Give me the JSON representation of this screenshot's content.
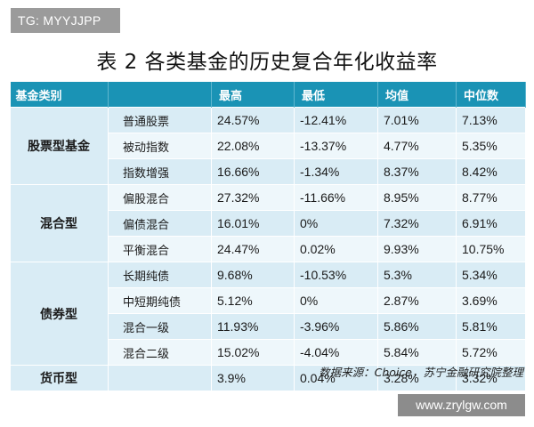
{
  "watermark_top": "TG: MYYJJPP",
  "title": "表 2  各类基金的历史复合年化收益率",
  "table": {
    "headers": [
      "基金类别",
      "",
      "最高",
      "最低",
      "均值",
      "中位数"
    ],
    "groups": [
      {
        "name": "股票型基金",
        "rows": [
          {
            "sub": "普通股票",
            "max": "24.57%",
            "min": "-12.41%",
            "mean": "7.01%",
            "median": "7.13%"
          },
          {
            "sub": "被动指数",
            "max": "22.08%",
            "min": "-13.37%",
            "mean": "4.77%",
            "median": "5.35%"
          },
          {
            "sub": "指数增强",
            "max": "16.66%",
            "min": "-1.34%",
            "mean": "8.37%",
            "median": "8.42%"
          }
        ]
      },
      {
        "name": "混合型",
        "rows": [
          {
            "sub": "偏股混合",
            "max": "27.32%",
            "min": "-11.66%",
            "mean": "8.95%",
            "median": "8.77%"
          },
          {
            "sub": "偏债混合",
            "max": "16.01%",
            "min": "0%",
            "mean": "7.32%",
            "median": "6.91%"
          },
          {
            "sub": "平衡混合",
            "max": "24.47%",
            "min": "0.02%",
            "mean": "9.93%",
            "median": "10.75%"
          }
        ]
      },
      {
        "name": "债券型",
        "rows": [
          {
            "sub": "长期纯债",
            "max": "9.68%",
            "min": "-10.53%",
            "mean": "5.3%",
            "median": "5.34%"
          },
          {
            "sub": "中短期纯债",
            "max": "5.12%",
            "min": "0%",
            "mean": "2.87%",
            "median": "3.69%"
          },
          {
            "sub": "混合一级",
            "max": "11.93%",
            "min": "-3.96%",
            "mean": "5.86%",
            "median": "5.81%"
          },
          {
            "sub": "混合二级",
            "max": "15.02%",
            "min": "-4.04%",
            "mean": "5.84%",
            "median": "5.72%"
          }
        ]
      },
      {
        "name": "货币型",
        "rows": [
          {
            "sub": "",
            "max": "3.9%",
            "min": "0.04%",
            "mean": "3.28%",
            "median": "3.32%"
          }
        ]
      }
    ]
  },
  "source": "数据来源：Choice，苏宁金融研究院整理",
  "watermark_bottom": "www.zrylgw.com",
  "colors": {
    "header_bg": "#1a93b5",
    "row_bg": "#d9ecf5",
    "row_alt_bg": "#eef7fb"
  }
}
